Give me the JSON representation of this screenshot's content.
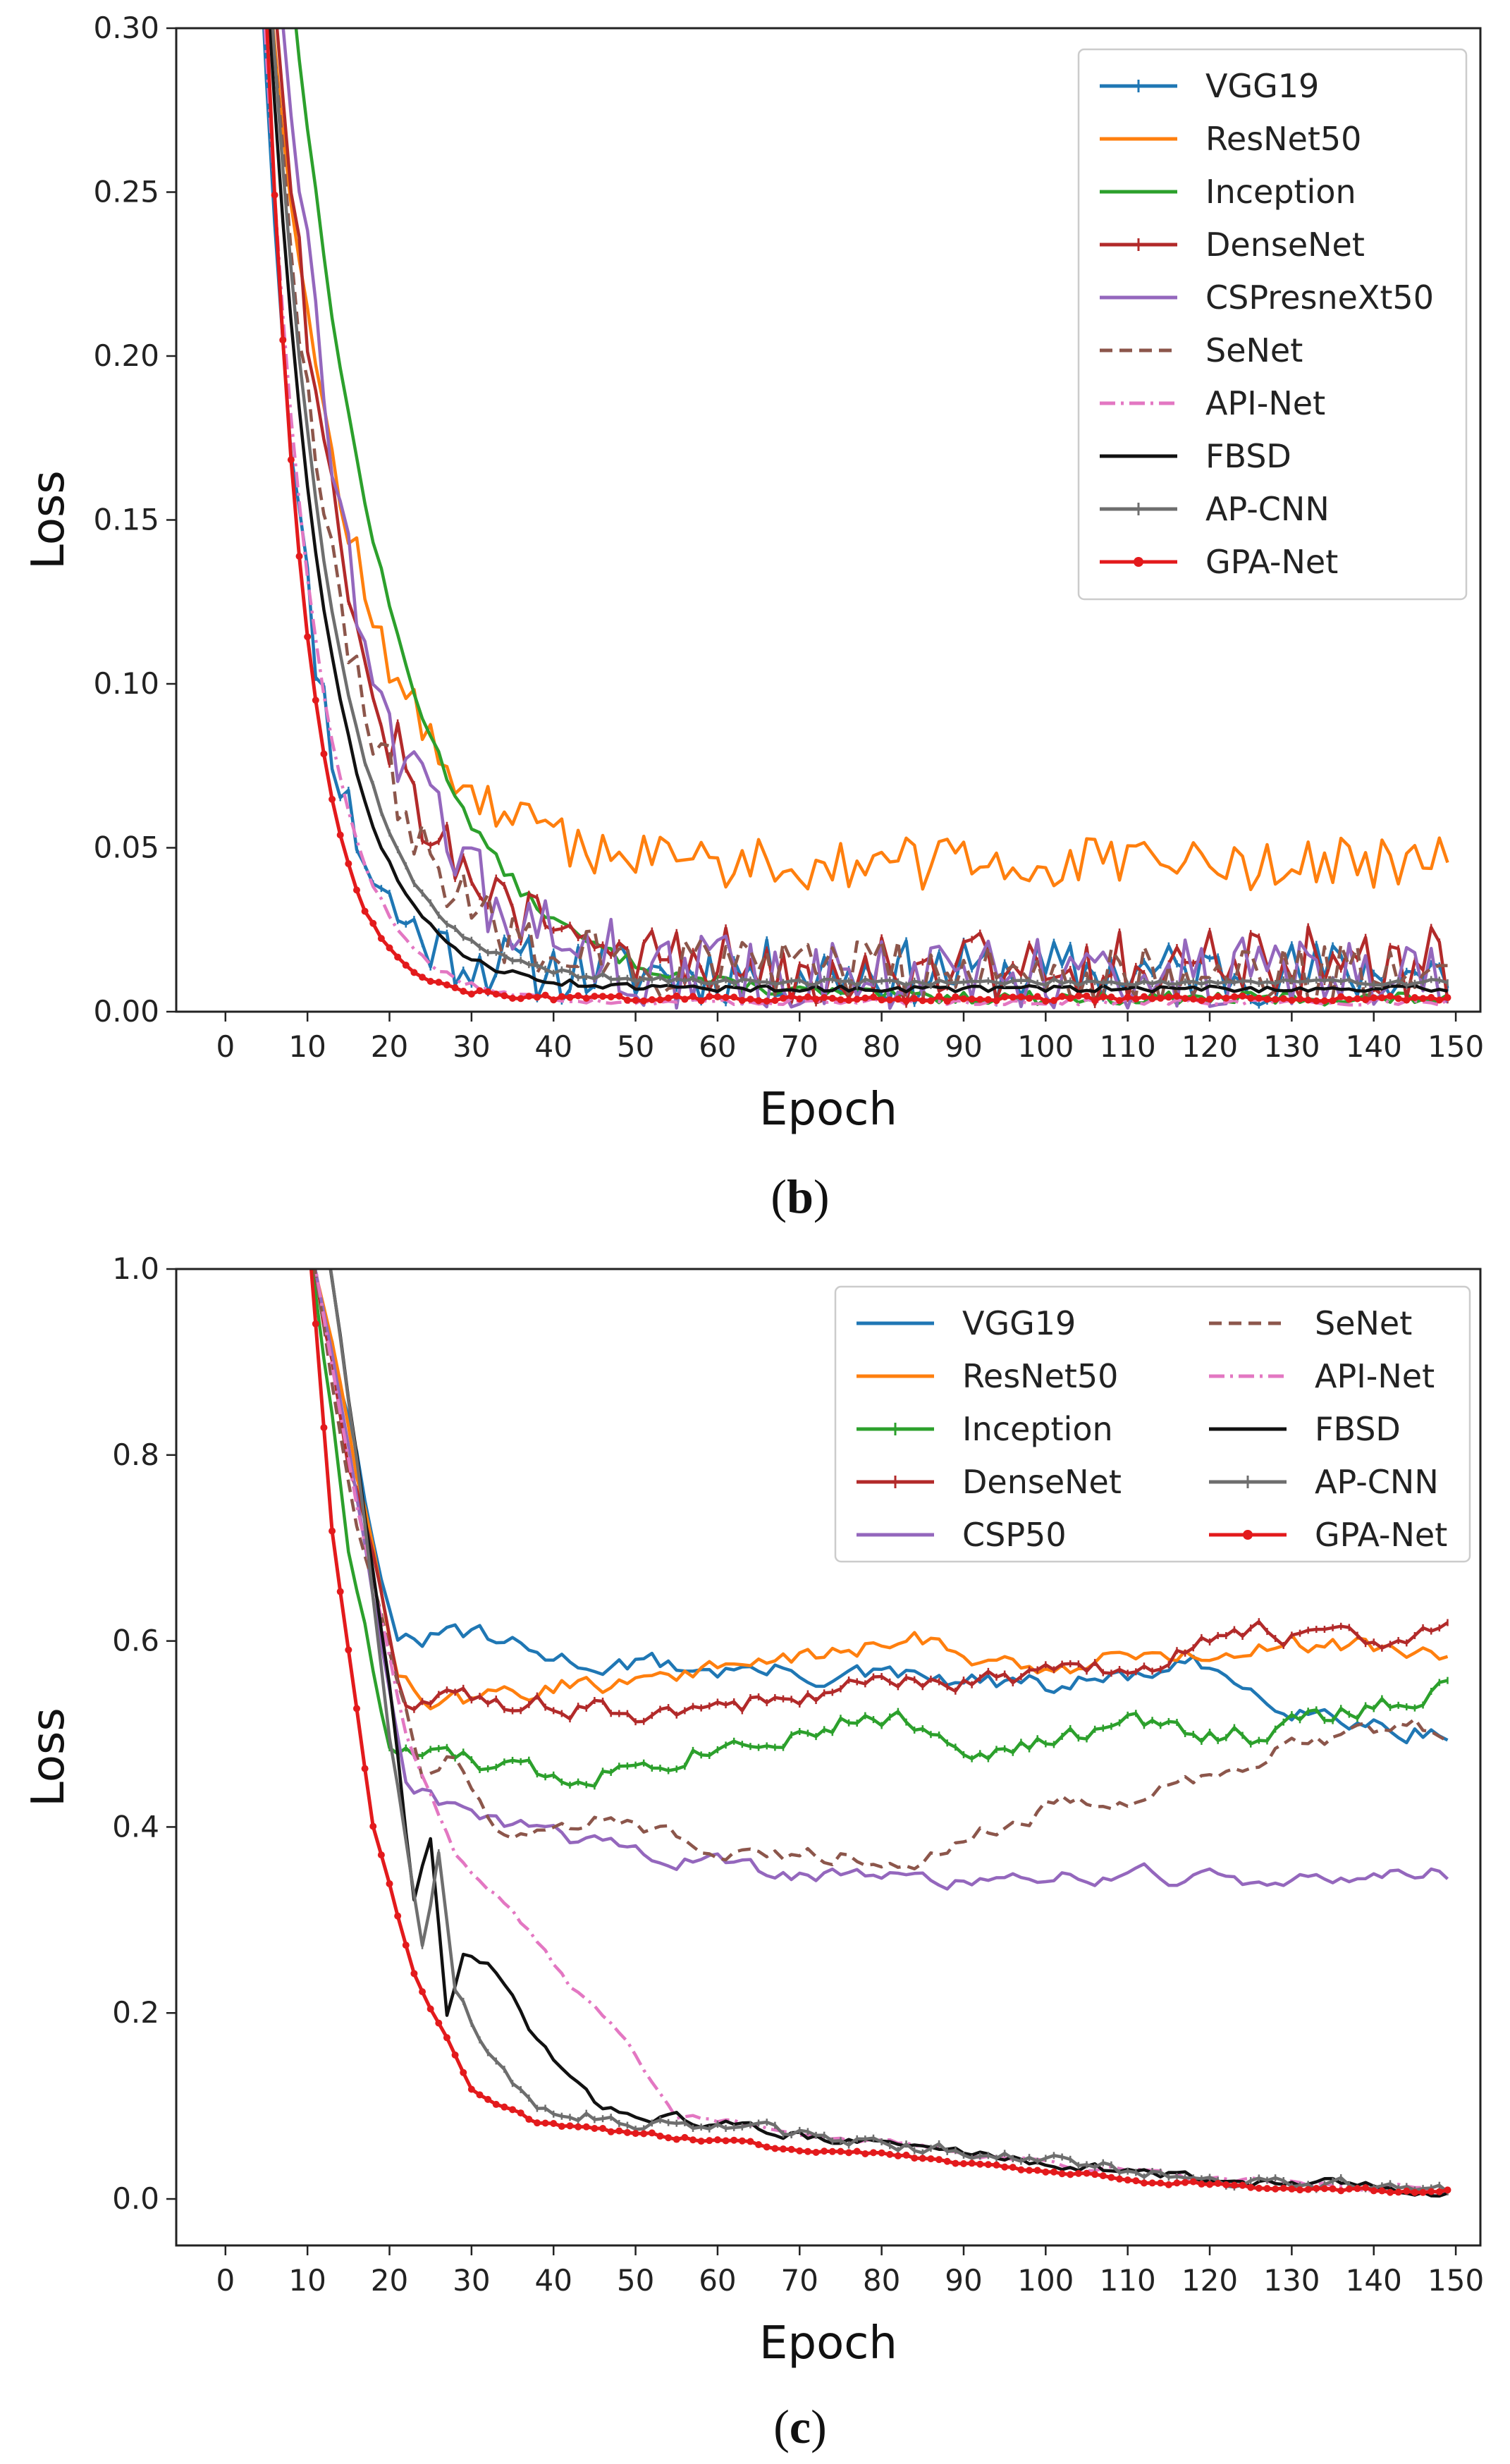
{
  "chart_data": [
    {
      "id": "b",
      "type": "line",
      "caption_paren_open": "(",
      "caption_letter": "b",
      "caption_paren_close": ")",
      "xlabel": "Epoch",
      "ylabel": "Loss",
      "xlim": [
        -6,
        153
      ],
      "ylim": [
        0,
        0.3
      ],
      "xticks": [
        "0",
        "10",
        "20",
        "30",
        "40",
        "50",
        "60",
        "70",
        "80",
        "90",
        "100",
        "110",
        "120",
        "130",
        "140",
        "150"
      ],
      "yticks": [
        "0.00",
        "0.05",
        "0.10",
        "0.15",
        "0.20",
        "0.25",
        "0.30"
      ],
      "legend_position": "top-right",
      "legend_columns": 1,
      "series": [
        {
          "name": "VGG19",
          "color": "#1f77b4",
          "style": "solid",
          "marker": "tick",
          "start": 0.55,
          "k": 0.17,
          "plateau": 0.012,
          "noise": 0.01,
          "seed": 11,
          "shift": 0
        },
        {
          "name": "ResNet50",
          "color": "#ff7f0e",
          "style": "solid",
          "marker": "none",
          "start": 0.55,
          "k": 0.1,
          "plateau": 0.045,
          "noise": 0.008,
          "seed": 12,
          "shift": 2
        },
        {
          "name": "Inception",
          "color": "#2ca02c",
          "style": "solid",
          "marker": "none",
          "start": 0.55,
          "k": 0.08,
          "plateau": 0.004,
          "noise": 0.002,
          "seed": 13,
          "shift": 0
        },
        {
          "name": "DenseNet",
          "color": "#b22a2a",
          "style": "solid",
          "marker": "plus",
          "start": 0.55,
          "k": 0.1,
          "plateau": 0.014,
          "noise": 0.012,
          "seed": 14,
          "shift": 1
        },
        {
          "name": "CSPresneXt50",
          "color": "#9467bd",
          "style": "solid",
          "marker": "none",
          "start": 0.55,
          "k": 0.1,
          "plateau": 0.01,
          "noise": 0.013,
          "seed": 15,
          "shift": 0
        },
        {
          "name": "SeNet",
          "color": "#8c564b",
          "style": "dashed",
          "marker": "none",
          "start": 0.55,
          "k": 0.11,
          "plateau": 0.012,
          "noise": 0.01,
          "seed": 16,
          "shift": 1
        },
        {
          "name": "API-Net",
          "color": "#e377c2",
          "style": "dashdot",
          "marker": "none",
          "start": 0.55,
          "k": 0.16,
          "plateau": 0.003,
          "noise": 0.001,
          "seed": 17,
          "shift": 0
        },
        {
          "name": "FBSD",
          "color": "#111111",
          "style": "solid",
          "marker": "none",
          "start": 0.55,
          "k": 0.14,
          "plateau": 0.007,
          "noise": 0.001,
          "seed": 18,
          "shift": 0
        },
        {
          "name": "AP-CNN",
          "color": "#6e6e6e",
          "style": "solid",
          "marker": "tick",
          "start": 0.55,
          "k": 0.13,
          "plateau": 0.009,
          "noise": 0.001,
          "seed": 19,
          "shift": 0
        },
        {
          "name": "GPA-Net",
          "color": "#e31a1c",
          "style": "solid",
          "marker": "dot",
          "start": 0.55,
          "k": 0.2,
          "plateau": 0.004,
          "noise": 0.0008,
          "seed": 20,
          "shift": -1
        }
      ]
    },
    {
      "id": "c",
      "type": "line",
      "caption_paren_open": "(",
      "caption_letter": "c",
      "caption_paren_close": ")",
      "xlabel": "Epoch",
      "ylabel": "Loss",
      "xlim": [
        -6,
        153
      ],
      "ylim": [
        -0.05,
        1.0
      ],
      "xticks": [
        "0",
        "10",
        "20",
        "30",
        "40",
        "50",
        "60",
        "70",
        "80",
        "90",
        "100",
        "110",
        "120",
        "130",
        "140",
        "150"
      ],
      "yticks": [
        "0.0",
        "0.2",
        "0.4",
        "0.6",
        "0.8",
        "1.0"
      ],
      "legend_position": "top-right",
      "legend_columns": 2,
      "series": [
        {
          "name": "VGG19",
          "color": "#1f77b4",
          "style": "solid",
          "marker": "none",
          "kp": [
            [
              10,
              1.05
            ],
            [
              16,
              0.8
            ],
            [
              21,
              0.59
            ],
            [
              28,
              0.61
            ],
            [
              40,
              0.58
            ],
            [
              60,
              0.57
            ],
            [
              80,
              0.56
            ],
            [
              100,
              0.55
            ],
            [
              118,
              0.57
            ],
            [
              135,
              0.52
            ],
            [
              149,
              0.5
            ]
          ],
          "noise": 0.01,
          "seed": 31
        },
        {
          "name": "ResNet50",
          "color": "#ff7f0e",
          "style": "solid",
          "marker": "none",
          "kp": [
            [
              10,
              1.05
            ],
            [
              16,
              0.78
            ],
            [
              21,
              0.56
            ],
            [
              25,
              0.53
            ],
            [
              40,
              0.55
            ],
            [
              60,
              0.57
            ],
            [
              85,
              0.6
            ],
            [
              100,
              0.57
            ],
            [
              120,
              0.59
            ],
            [
              130,
              0.6
            ],
            [
              149,
              0.59
            ]
          ],
          "noise": 0.01,
          "seed": 32
        },
        {
          "name": "Inception",
          "color": "#2ca02c",
          "style": "solid",
          "marker": "tick",
          "kp": [
            [
              10,
              1.05
            ],
            [
              15,
              0.7
            ],
            [
              20,
              0.48
            ],
            [
              30,
              0.47
            ],
            [
              40,
              0.45
            ],
            [
              60,
              0.49
            ],
            [
              80,
              0.52
            ],
            [
              95,
              0.48
            ],
            [
              110,
              0.51
            ],
            [
              125,
              0.5
            ],
            [
              140,
              0.53
            ],
            [
              149,
              0.55
            ]
          ],
          "noise": 0.01,
          "seed": 33
        },
        {
          "name": "DenseNet",
          "color": "#b22a2a",
          "style": "solid",
          "marker": "plus",
          "kp": [
            [
              10,
              1.05
            ],
            [
              15,
              0.8
            ],
            [
              22,
              0.53
            ],
            [
              30,
              0.54
            ],
            [
              50,
              0.52
            ],
            [
              70,
              0.54
            ],
            [
              90,
              0.56
            ],
            [
              110,
              0.57
            ],
            [
              125,
              0.61
            ],
            [
              140,
              0.6
            ],
            [
              149,
              0.61
            ]
          ],
          "noise": 0.01,
          "seed": 34
        },
        {
          "name": "CSP50",
          "color": "#9467bd",
          "style": "solid",
          "marker": "none",
          "kp": [
            [
              10,
              1.05
            ],
            [
              16,
              0.75
            ],
            [
              22,
              0.44
            ],
            [
              30,
              0.41
            ],
            [
              50,
              0.37
            ],
            [
              70,
              0.35
            ],
            [
              90,
              0.34
            ],
            [
              110,
              0.35
            ],
            [
              130,
              0.34
            ],
            [
              149,
              0.35
            ]
          ],
          "noise": 0.008,
          "seed": 35
        },
        {
          "name": "SeNet",
          "color": "#8c564b",
          "style": "dashed",
          "marker": "none",
          "kp": [
            [
              10,
              1.05
            ],
            [
              16,
              0.72
            ],
            [
              24,
              0.46
            ],
            [
              28,
              0.48
            ],
            [
              33,
              0.39
            ],
            [
              45,
              0.41
            ],
            [
              60,
              0.38
            ],
            [
              70,
              0.37
            ],
            [
              84,
              0.37
            ],
            [
              100,
              0.42
            ],
            [
              115,
              0.44
            ],
            [
              130,
              0.49
            ],
            [
              145,
              0.51
            ],
            [
              149,
              0.5
            ]
          ],
          "noise": 0.008,
          "seed": 36
        },
        {
          "name": "API-Net",
          "color": "#e377c2",
          "style": "dashdot",
          "marker": "none",
          "kp": [
            [
              10,
              1.05
            ],
            [
              16,
              0.75
            ],
            [
              22,
              0.5
            ],
            [
              28,
              0.37
            ],
            [
              35,
              0.31
            ],
            [
              42,
              0.23
            ],
            [
              48,
              0.18
            ],
            [
              55,
              0.09
            ],
            [
              80,
              0.06
            ],
            [
              100,
              0.04
            ],
            [
              120,
              0.02
            ],
            [
              149,
              0.01
            ]
          ],
          "noise": 0.003,
          "seed": 37
        },
        {
          "name": "FBSD",
          "color": "#111111",
          "style": "solid",
          "marker": "none",
          "kp": [
            [
              12,
              1.05
            ],
            [
              16,
              0.8
            ],
            [
              20,
              0.55
            ],
            [
              23,
              0.32
            ],
            [
              25,
              0.39
            ],
            [
              27,
              0.2
            ],
            [
              29,
              0.26
            ],
            [
              32,
              0.25
            ],
            [
              38,
              0.17
            ],
            [
              45,
              0.1
            ],
            [
              60,
              0.08
            ],
            [
              80,
              0.06
            ],
            [
              100,
              0.04
            ],
            [
              120,
              0.02
            ],
            [
              149,
              0.01
            ]
          ],
          "noise": 0.005,
          "seed": 38
        },
        {
          "name": "AP-CNN",
          "color": "#6e6e6e",
          "style": "solid",
          "marker": "tick",
          "kp": [
            [
              12,
              1.05
            ],
            [
              16,
              0.8
            ],
            [
              20,
              0.5
            ],
            [
              24,
              0.27
            ],
            [
              26,
              0.37
            ],
            [
              28,
              0.22
            ],
            [
              32,
              0.16
            ],
            [
              38,
              0.1
            ],
            [
              50,
              0.085
            ],
            [
              80,
              0.06
            ],
            [
              100,
              0.04
            ],
            [
              120,
              0.02
            ],
            [
              149,
              0.01
            ]
          ],
          "noise": 0.006,
          "seed": 39
        },
        {
          "name": "GPA-Net",
          "color": "#e31a1c",
          "style": "solid",
          "marker": "dot",
          "kp": [
            [
              10,
              1.05
            ],
            [
              13,
              0.72
            ],
            [
              18,
              0.4
            ],
            [
              23,
              0.24
            ],
            [
              30,
              0.12
            ],
            [
              38,
              0.08
            ],
            [
              50,
              0.07
            ],
            [
              70,
              0.055
            ],
            [
              90,
              0.04
            ],
            [
              110,
              0.02
            ],
            [
              130,
              0.01
            ],
            [
              149,
              0.008
            ]
          ],
          "noise": 0.002,
          "seed": 40
        }
      ]
    }
  ]
}
